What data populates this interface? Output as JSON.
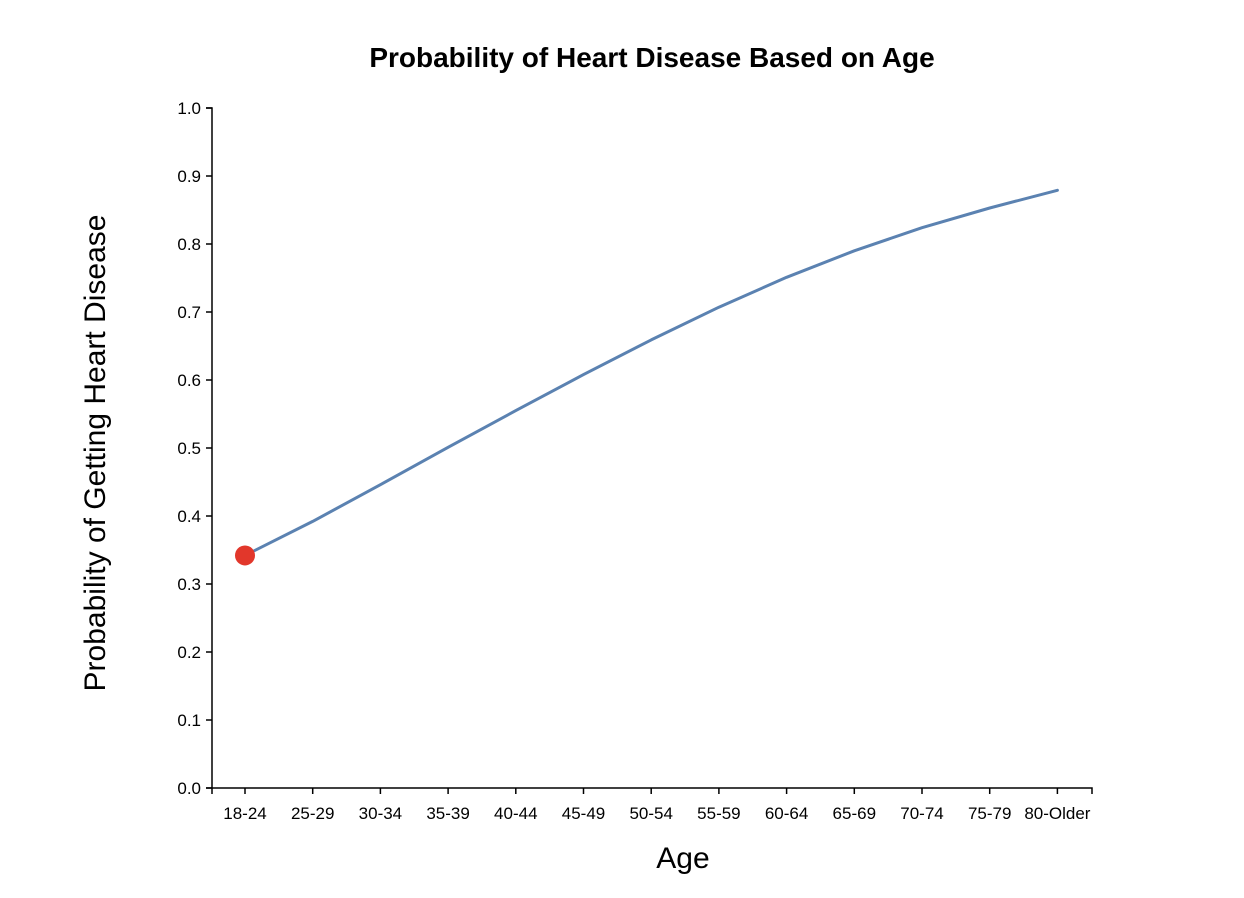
{
  "chart_data": {
    "type": "line",
    "title": "Probability of Heart Disease Based on Age",
    "xlabel": "Age",
    "ylabel": "Probability of Getting Heart Disease",
    "categories": [
      "18-24",
      "25-29",
      "30-34",
      "35-39",
      "40-44",
      "45-49",
      "50-54",
      "55-59",
      "60-64",
      "65-69",
      "70-74",
      "75-79",
      "80-Older"
    ],
    "series": [
      {
        "values": [
          0.342,
          0.392,
          0.446,
          0.501,
          0.555,
          0.608,
          0.659,
          0.707,
          0.751,
          0.79,
          0.824,
          0.853,
          0.879
        ]
      }
    ],
    "highlight": {
      "category": "18-24",
      "value": 0.342
    },
    "ylim": [
      0.0,
      1.0
    ],
    "yticks": [
      "0.0",
      "0.1",
      "0.2",
      "0.3",
      "0.4",
      "0.5",
      "0.6",
      "0.7",
      "0.8",
      "0.9",
      "1.0"
    ],
    "grid": false,
    "legend": "none",
    "colors": {
      "line": "#5b82b1",
      "highlight": "#e2372b",
      "axis": "#000000",
      "background": "#ffffff"
    }
  }
}
